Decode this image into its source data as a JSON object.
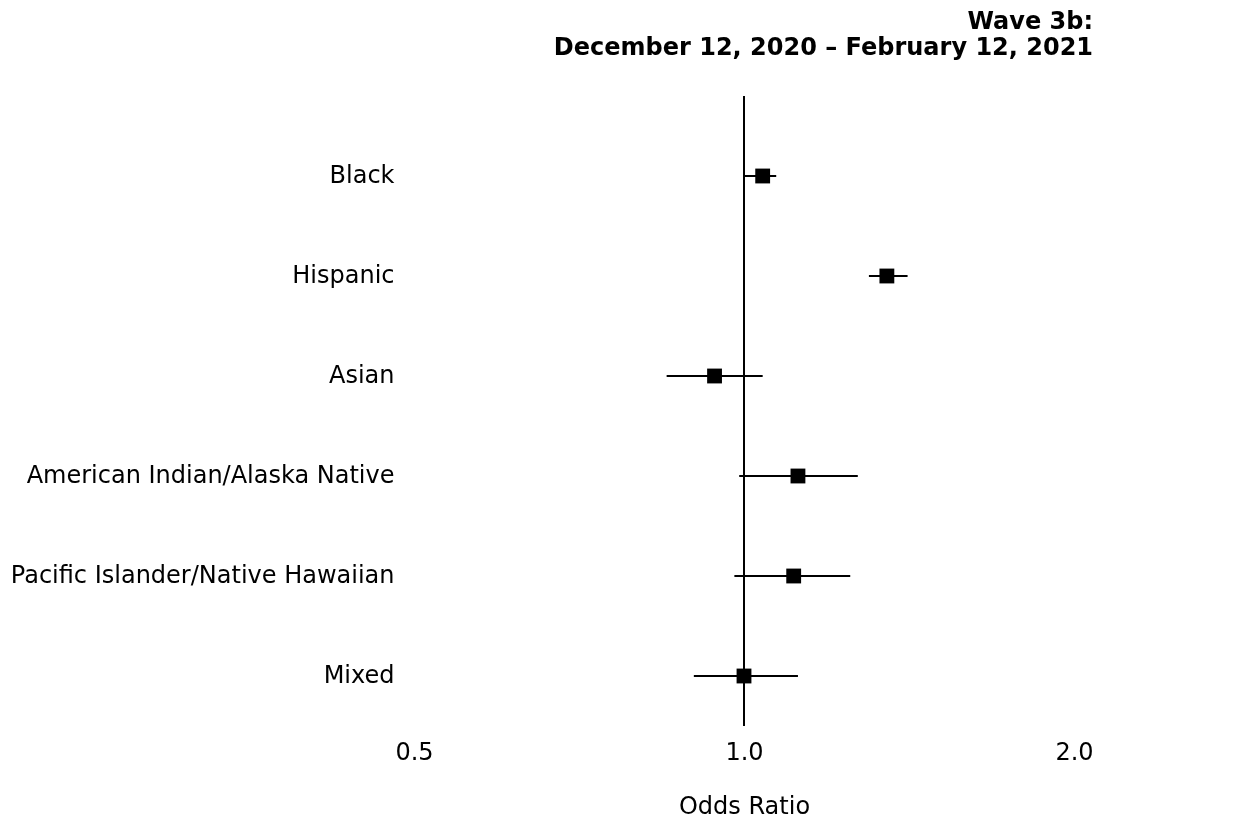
{
  "chart_data": {
    "type": "scatter",
    "orientation": "horizontal",
    "title": "Wave 3b:\nDecember 12, 2020 – February 12, 2021",
    "xlabel": "Odds Ratio",
    "categories": [
      "Black",
      "Hispanic",
      "Asian",
      "American Indian/Alaska Native",
      "Pacific Islander/Native Hawaiian",
      "Mixed"
    ],
    "series": [
      {
        "color": "#000000",
        "values": [
          1.04,
          1.35,
          0.94,
          1.12,
          1.11,
          1.0
        ],
        "errors": [
          [
            1.0,
            1.07
          ],
          [
            1.3,
            1.41
          ],
          [
            0.85,
            1.04
          ],
          [
            0.99,
            1.27
          ],
          [
            0.98,
            1.25
          ],
          [
            0.9,
            1.12
          ]
        ]
      }
    ],
    "marker": "square",
    "log": "x",
    "xlim": [
      0.5,
      2.0
    ],
    "xticks": [
      0.5,
      {
        "value": 1,
        "label": "1.0"
      },
      {
        "value": 2,
        "label": "2.0"
      }
    ],
    "ref_lines": [
      {
        "axis": "x",
        "value": 1,
        "color": "#000000"
      }
    ],
    "grid": false,
    "legend": false
  }
}
